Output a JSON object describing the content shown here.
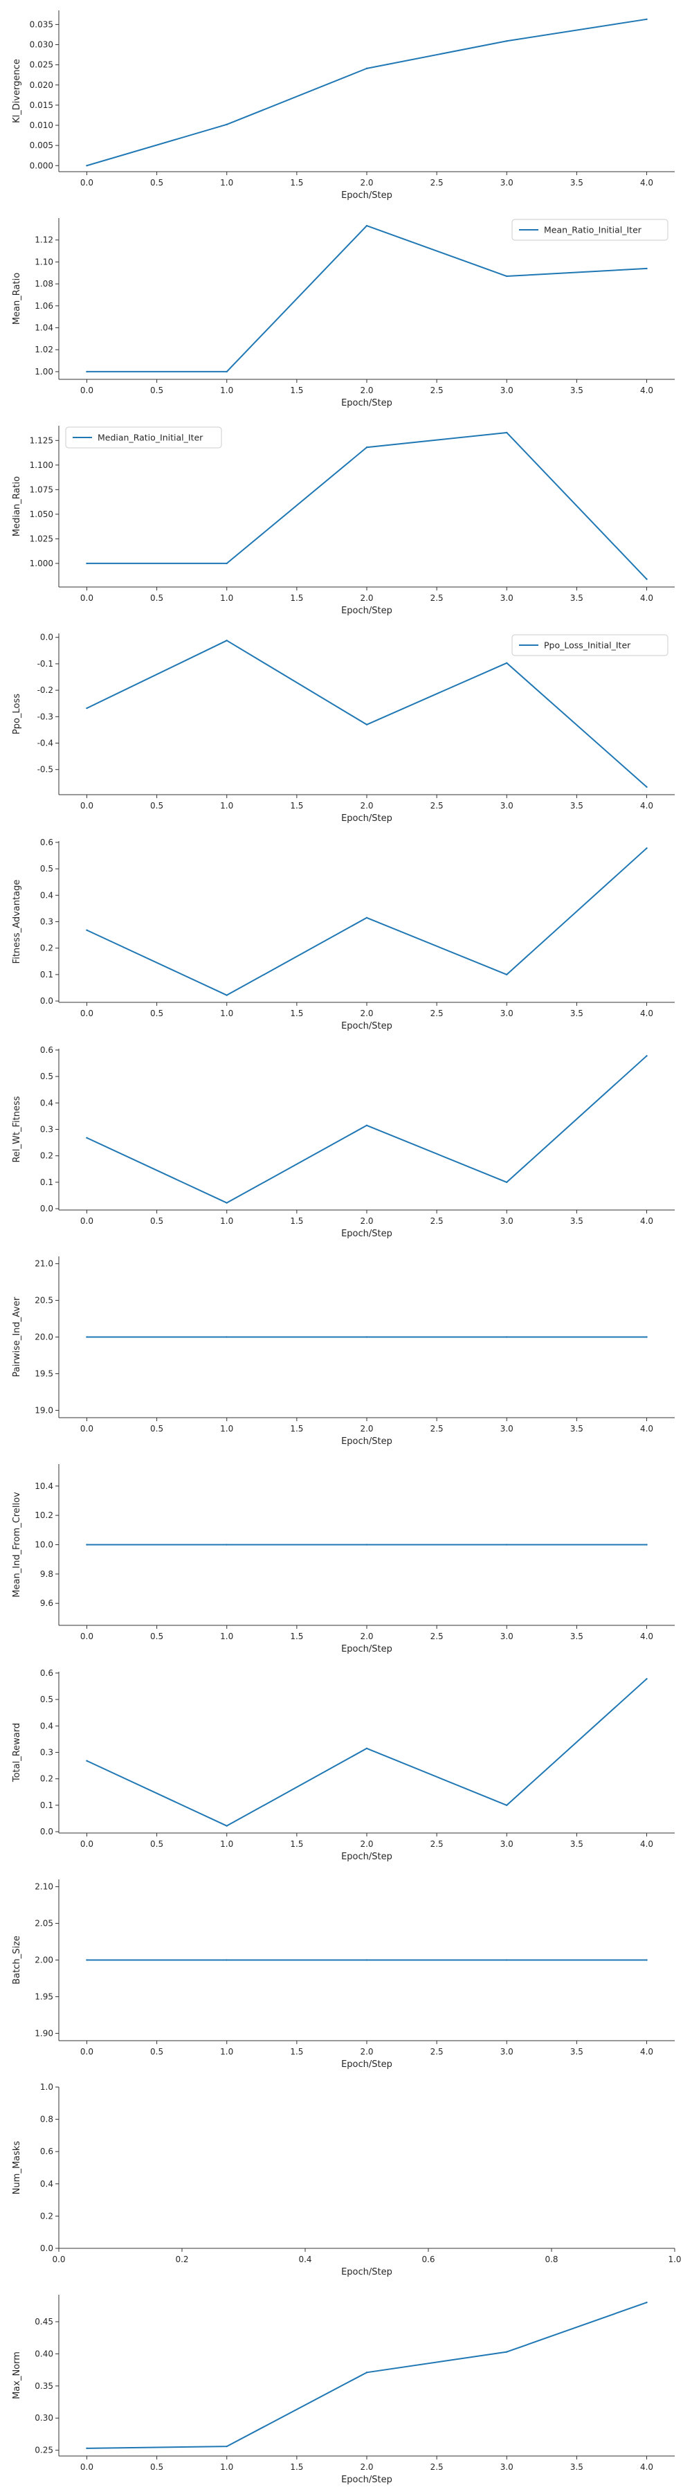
{
  "colors": {
    "line": "#1f77b4",
    "axis": "#333333",
    "text": "#262626",
    "legend_border": "#cccccc"
  },
  "chart_data": [
    {
      "type": "line",
      "xlabel": "Epoch/Step",
      "ylabel": "Kl_Divergence",
      "x": [
        0,
        1,
        2,
        3,
        4
      ],
      "series": [
        {
          "values": [
            0.0,
            0.0102,
            0.0241,
            0.0309,
            0.0363
          ]
        }
      ],
      "xlim": [
        -0.2,
        4.2
      ],
      "ylim": [
        -0.0015,
        0.0385
      ],
      "xticks": [
        "0.0",
        "0.5",
        "1.0",
        "1.5",
        "2.0",
        "2.5",
        "3.0",
        "3.5",
        "4.0"
      ],
      "yticks": [
        "0.000",
        "0.005",
        "0.010",
        "0.015",
        "0.020",
        "0.025",
        "0.030",
        "0.035"
      ],
      "grid": false,
      "legend": null
    },
    {
      "type": "line",
      "xlabel": "Epoch/Step",
      "ylabel": "Mean_Ratio",
      "x": [
        0,
        1,
        2,
        3,
        4
      ],
      "series": [
        {
          "name": "Mean_Ratio_Initial_Iter",
          "values": [
            1.0,
            1.0,
            1.133,
            1.087,
            1.094
          ]
        }
      ],
      "xlim": [
        -0.2,
        4.2
      ],
      "ylim": [
        0.993,
        1.14
      ],
      "xticks": [
        "0.0",
        "0.5",
        "1.0",
        "1.5",
        "2.0",
        "2.5",
        "3.0",
        "3.5",
        "4.0"
      ],
      "yticks": [
        "1.00",
        "1.02",
        "1.04",
        "1.06",
        "1.08",
        "1.10",
        "1.12"
      ],
      "grid": false,
      "legend": "upper right"
    },
    {
      "type": "line",
      "xlabel": "Epoch/Step",
      "ylabel": "Median_Ratio",
      "x": [
        0,
        1,
        2,
        3,
        4
      ],
      "series": [
        {
          "name": "Median_Ratio_Initial_Iter",
          "values": [
            1.0,
            1.0,
            1.118,
            1.133,
            0.984
          ]
        }
      ],
      "xlim": [
        -0.2,
        4.2
      ],
      "ylim": [
        0.976,
        1.14
      ],
      "xticks": [
        "0.0",
        "0.5",
        "1.0",
        "1.5",
        "2.0",
        "2.5",
        "3.0",
        "3.5",
        "4.0"
      ],
      "yticks": [
        "1.000",
        "1.025",
        "1.050",
        "1.075",
        "1.100",
        "1.125"
      ],
      "grid": false,
      "legend": "upper left"
    },
    {
      "type": "line",
      "xlabel": "Epoch/Step",
      "ylabel": "Ppo_Loss",
      "x": [
        0,
        1,
        2,
        3,
        4
      ],
      "series": [
        {
          "name": "Ppo_Loss_Initial_Iter",
          "values": [
            -0.268,
            -0.012,
            -0.33,
            -0.097,
            -0.566
          ]
        }
      ],
      "xlim": [
        -0.2,
        4.2
      ],
      "ylim": [
        -0.595,
        0.015
      ],
      "xticks": [
        "0.0",
        "0.5",
        "1.0",
        "1.5",
        "2.0",
        "2.5",
        "3.0",
        "3.5",
        "4.0"
      ],
      "yticks": [
        "0.0",
        "-0.1",
        "-0.2",
        "-0.3",
        "-0.4",
        "-0.5"
      ],
      "grid": false,
      "legend": "upper right"
    },
    {
      "type": "line",
      "xlabel": "Epoch/Step",
      "ylabel": "Fitness_Advantage",
      "x": [
        0,
        1,
        2,
        3,
        4
      ],
      "series": [
        {
          "values": [
            0.268,
            0.022,
            0.315,
            0.1,
            0.578
          ]
        }
      ],
      "xlim": [
        -0.2,
        4.2
      ],
      "ylim": [
        -0.005,
        0.605
      ],
      "xticks": [
        "0.0",
        "0.5",
        "1.0",
        "1.5",
        "2.0",
        "2.5",
        "3.0",
        "3.5",
        "4.0"
      ],
      "yticks": [
        "0.0",
        "0.1",
        "0.2",
        "0.3",
        "0.4",
        "0.5",
        "0.6"
      ],
      "grid": false,
      "legend": null
    },
    {
      "type": "line",
      "xlabel": "Epoch/Step",
      "ylabel": "Rel_Wt_Fitness",
      "x": [
        0,
        1,
        2,
        3,
        4
      ],
      "series": [
        {
          "values": [
            0.268,
            0.022,
            0.315,
            0.1,
            0.578
          ]
        }
      ],
      "xlim": [
        -0.2,
        4.2
      ],
      "ylim": [
        -0.005,
        0.605
      ],
      "xticks": [
        "0.0",
        "0.5",
        "1.0",
        "1.5",
        "2.0",
        "2.5",
        "3.0",
        "3.5",
        "4.0"
      ],
      "yticks": [
        "0.0",
        "0.1",
        "0.2",
        "0.3",
        "0.4",
        "0.5",
        "0.6"
      ],
      "grid": false,
      "legend": null
    },
    {
      "type": "line",
      "xlabel": "Epoch/Step",
      "ylabel": "Pairwise_Ind_Aver",
      "x": [
        0,
        1,
        2,
        3,
        4
      ],
      "series": [
        {
          "values": [
            20.0,
            20.0,
            20.0,
            20.0,
            20.0
          ]
        }
      ],
      "xlim": [
        -0.2,
        4.2
      ],
      "ylim": [
        18.9,
        21.1
      ],
      "xticks": [
        "0.0",
        "0.5",
        "1.0",
        "1.5",
        "2.0",
        "2.5",
        "3.0",
        "3.5",
        "4.0"
      ],
      "yticks": [
        "19.0",
        "19.5",
        "20.0",
        "20.5",
        "21.0"
      ],
      "grid": false,
      "legend": null
    },
    {
      "type": "line",
      "xlabel": "Epoch/Step",
      "ylabel": "Mean_Ind_From_Crellov",
      "x": [
        0,
        1,
        2,
        3,
        4
      ],
      "series": [
        {
          "values": [
            10.0,
            10.0,
            10.0,
            10.0,
            10.0
          ]
        }
      ],
      "xlim": [
        -0.2,
        4.2
      ],
      "ylim": [
        9.45,
        10.55
      ],
      "xticks": [
        "0.0",
        "0.5",
        "1.0",
        "1.5",
        "2.0",
        "2.5",
        "3.0",
        "3.5",
        "4.0"
      ],
      "yticks": [
        "9.6",
        "9.8",
        "10.0",
        "10.2",
        "10.4"
      ],
      "grid": false,
      "legend": null
    },
    {
      "type": "line",
      "xlabel": "Epoch/Step",
      "ylabel": "Total_Reward",
      "x": [
        0,
        1,
        2,
        3,
        4
      ],
      "series": [
        {
          "values": [
            0.268,
            0.022,
            0.315,
            0.1,
            0.578
          ]
        }
      ],
      "xlim": [
        -0.2,
        4.2
      ],
      "ylim": [
        -0.005,
        0.605
      ],
      "xticks": [
        "0.0",
        "0.5",
        "1.0",
        "1.5",
        "2.0",
        "2.5",
        "3.0",
        "3.5",
        "4.0"
      ],
      "yticks": [
        "0.0",
        "0.1",
        "0.2",
        "0.3",
        "0.4",
        "0.5",
        "0.6"
      ],
      "grid": false,
      "legend": null
    },
    {
      "type": "line",
      "xlabel": "Epoch/Step",
      "ylabel": "Batch_Size",
      "x": [
        0,
        1,
        2,
        3,
        4
      ],
      "series": [
        {
          "values": [
            2.0,
            2.0,
            2.0,
            2.0,
            2.0
          ]
        }
      ],
      "xlim": [
        -0.2,
        4.2
      ],
      "ylim": [
        1.89,
        2.11
      ],
      "xticks": [
        "0.0",
        "0.5",
        "1.0",
        "1.5",
        "2.0",
        "2.5",
        "3.0",
        "3.5",
        "4.0"
      ],
      "yticks": [
        "1.90",
        "1.95",
        "2.00",
        "2.05",
        "2.10"
      ],
      "grid": false,
      "legend": null
    },
    {
      "type": "line",
      "xlabel": "Epoch/Step",
      "ylabel": "Num_Masks",
      "x": [],
      "series": [],
      "xlim": [
        0,
        1
      ],
      "ylim": [
        0,
        1
      ],
      "xticks": [
        "0.0",
        "0.2",
        "0.4",
        "0.6",
        "0.8",
        "1.0"
      ],
      "yticks": [
        "0.0",
        "0.2",
        "0.4",
        "0.6",
        "0.8",
        "1.0"
      ],
      "grid": false,
      "legend": null
    },
    {
      "type": "line",
      "xlabel": "Epoch/Step",
      "ylabel": "Max_Norm",
      "x": [
        0,
        1,
        2,
        3,
        4
      ],
      "series": [
        {
          "values": [
            0.253,
            0.256,
            0.371,
            0.403,
            0.48
          ]
        }
      ],
      "xlim": [
        -0.2,
        4.2
      ],
      "ylim": [
        0.241,
        0.492
      ],
      "xticks": [
        "0.0",
        "0.5",
        "1.0",
        "1.5",
        "2.0",
        "2.5",
        "3.0",
        "3.5",
        "4.0"
      ],
      "yticks": [
        "0.25",
        "0.30",
        "0.35",
        "0.40",
        "0.45"
      ],
      "grid": false,
      "legend": null
    }
  ]
}
